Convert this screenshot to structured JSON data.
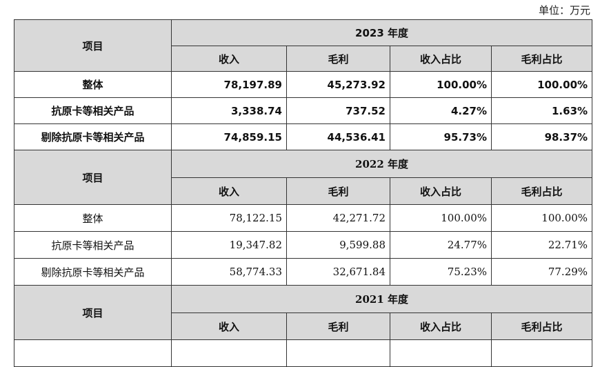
{
  "unit_label": "单位：万元",
  "item_header": "项目",
  "columns": [
    "收入",
    "毛利",
    "收入占比",
    "毛利占比"
  ],
  "sections": [
    {
      "year": "2023 年度",
      "rows": [
        {
          "item": "整体",
          "values": [
            "78,197.89",
            "45,273.92",
            "100.00%",
            "100.00%"
          ]
        },
        {
          "item": "抗原卡等相关产品",
          "values": [
            "3,338.74",
            "737.52",
            "4.27%",
            "1.63%"
          ]
        },
        {
          "item": "剔除抗原卡等相关产品",
          "values": [
            "74,859.15",
            "44,536.41",
            "95.73%",
            "98.37%"
          ]
        }
      ]
    },
    {
      "year": "2022 年度",
      "rows": [
        {
          "item": "整体",
          "values": [
            "78,122.15",
            "42,271.72",
            "100.00%",
            "100.00%"
          ]
        },
        {
          "item": "抗原卡等相关产品",
          "values": [
            "19,347.82",
            "9,599.88",
            "24.77%",
            "22.71%"
          ]
        },
        {
          "item": "剔除抗原卡等相关产品",
          "values": [
            "58,774.33",
            "32,671.84",
            "75.23%",
            "77.29%"
          ]
        }
      ]
    },
    {
      "year": "2021 年度",
      "rows": []
    }
  ]
}
